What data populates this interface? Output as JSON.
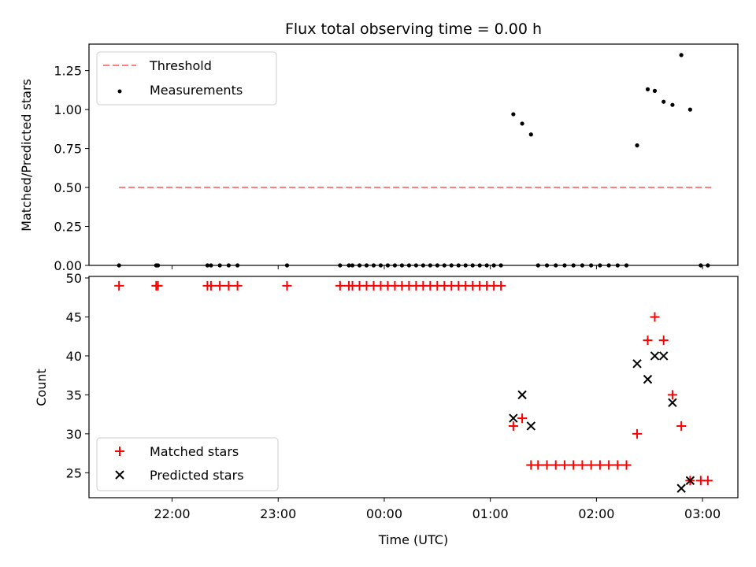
{
  "chart_data": [
    {
      "type": "scatter",
      "title": "Flux total observing time = 0.00 h",
      "xlabel": "",
      "ylabel": "Matched/Predicted stars",
      "xlim": [
        "21:13",
        "03:20"
      ],
      "ylim": [
        0,
        1.42
      ],
      "yticks": [
        "0.00",
        "0.25",
        "0.50",
        "0.75",
        "1.00",
        "1.25"
      ],
      "ytick_values": [
        0,
        0.25,
        0.5,
        0.75,
        1.0,
        1.25
      ],
      "legend": {
        "position": "upper-left",
        "entries": [
          "Threshold",
          "Measurements"
        ]
      },
      "grid": false,
      "series": [
        {
          "name": "Threshold",
          "style": "dashed-line",
          "color": "#ff7f7f",
          "x": [
            "21:30",
            "03:05"
          ],
          "y": [
            0.5,
            0.5
          ]
        },
        {
          "name": "Measurements",
          "style": "dot",
          "color": "#000000",
          "points": [
            [
              "21:30",
              0
            ],
            [
              "21:51",
              0
            ],
            [
              "21:52",
              0
            ],
            [
              "22:20",
              0
            ],
            [
              "22:22",
              0
            ],
            [
              "22:27",
              0
            ],
            [
              "22:32",
              0
            ],
            [
              "22:37",
              0
            ],
            [
              "23:05",
              0
            ],
            [
              "23:35",
              0
            ],
            [
              "23:40",
              0
            ],
            [
              "23:42",
              0
            ],
            [
              "23:46",
              0
            ],
            [
              "23:50",
              0
            ],
            [
              "23:54",
              0
            ],
            [
              "23:58",
              0
            ],
            [
              "00:02",
              0
            ],
            [
              "00:06",
              0
            ],
            [
              "00:10",
              0
            ],
            [
              "00:14",
              0
            ],
            [
              "00:18",
              0
            ],
            [
              "00:22",
              0
            ],
            [
              "00:26",
              0
            ],
            [
              "00:30",
              0
            ],
            [
              "00:34",
              0
            ],
            [
              "00:38",
              0
            ],
            [
              "00:42",
              0
            ],
            [
              "00:46",
              0
            ],
            [
              "00:50",
              0
            ],
            [
              "00:54",
              0
            ],
            [
              "00:58",
              0
            ],
            [
              "01:02",
              0
            ],
            [
              "01:06",
              0
            ],
            [
              "01:13",
              0.97
            ],
            [
              "01:18",
              0.91
            ],
            [
              "01:23",
              0.84
            ],
            [
              "01:27",
              0
            ],
            [
              "01:32",
              0
            ],
            [
              "01:37",
              0
            ],
            [
              "01:42",
              0
            ],
            [
              "01:47",
              0
            ],
            [
              "01:52",
              0
            ],
            [
              "01:57",
              0
            ],
            [
              "02:02",
              0
            ],
            [
              "02:07",
              0
            ],
            [
              "02:12",
              0
            ],
            [
              "02:17",
              0
            ],
            [
              "02:23",
              0.77
            ],
            [
              "02:29",
              1.13
            ],
            [
              "02:33",
              1.12
            ],
            [
              "02:38",
              1.05
            ],
            [
              "02:43",
              1.03
            ],
            [
              "02:48",
              1.35
            ],
            [
              "02:53",
              1.0
            ],
            [
              "02:59",
              0
            ],
            [
              "03:03",
              0
            ]
          ]
        }
      ]
    },
    {
      "type": "scatter",
      "title": "",
      "xlabel": "Time (UTC)",
      "ylabel": "Count",
      "xlim": [
        "21:13",
        "03:20"
      ],
      "ylim": [
        21.8,
        50.2
      ],
      "xticks": [
        "22:00",
        "23:00",
        "00:00",
        "01:00",
        "02:00",
        "03:00"
      ],
      "yticks": [
        "25",
        "30",
        "35",
        "40",
        "45",
        "50"
      ],
      "ytick_values": [
        25,
        30,
        35,
        40,
        45,
        50
      ],
      "legend": {
        "position": "lower-left",
        "entries": [
          "Matched stars",
          "Predicted stars"
        ]
      },
      "grid": false,
      "series": [
        {
          "name": "Matched stars",
          "marker": "plus",
          "color": "#ff0000",
          "points": [
            [
              "21:30",
              49
            ],
            [
              "21:51",
              49
            ],
            [
              "21:52",
              49
            ],
            [
              "22:20",
              49
            ],
            [
              "22:22",
              49
            ],
            [
              "22:27",
              49
            ],
            [
              "22:32",
              49
            ],
            [
              "22:37",
              49
            ],
            [
              "23:05",
              49
            ],
            [
              "23:35",
              49
            ],
            [
              "23:40",
              49
            ],
            [
              "23:42",
              49
            ],
            [
              "23:46",
              49
            ],
            [
              "23:50",
              49
            ],
            [
              "23:54",
              49
            ],
            [
              "23:58",
              49
            ],
            [
              "00:02",
              49
            ],
            [
              "00:06",
              49
            ],
            [
              "00:10",
              49
            ],
            [
              "00:14",
              49
            ],
            [
              "00:18",
              49
            ],
            [
              "00:22",
              49
            ],
            [
              "00:26",
              49
            ],
            [
              "00:30",
              49
            ],
            [
              "00:34",
              49
            ],
            [
              "00:38",
              49
            ],
            [
              "00:42",
              49
            ],
            [
              "00:46",
              49
            ],
            [
              "00:50",
              49
            ],
            [
              "00:54",
              49
            ],
            [
              "00:58",
              49
            ],
            [
              "01:02",
              49
            ],
            [
              "01:06",
              49
            ],
            [
              "01:13",
              31
            ],
            [
              "01:18",
              32
            ],
            [
              "01:23",
              26
            ],
            [
              "01:27",
              26
            ],
            [
              "01:32",
              26
            ],
            [
              "01:37",
              26
            ],
            [
              "01:42",
              26
            ],
            [
              "01:47",
              26
            ],
            [
              "01:52",
              26
            ],
            [
              "01:57",
              26
            ],
            [
              "02:02",
              26
            ],
            [
              "02:07",
              26
            ],
            [
              "02:12",
              26
            ],
            [
              "02:17",
              26
            ],
            [
              "02:23",
              30
            ],
            [
              "02:29",
              42
            ],
            [
              "02:33",
              45
            ],
            [
              "02:38",
              42
            ],
            [
              "02:43",
              35
            ],
            [
              "02:48",
              31
            ],
            [
              "02:53",
              24
            ],
            [
              "02:59",
              24
            ],
            [
              "03:03",
              24
            ]
          ]
        },
        {
          "name": "Predicted stars",
          "marker": "x",
          "color": "#000000",
          "points": [
            [
              "01:13",
              32
            ],
            [
              "01:18",
              35
            ],
            [
              "01:23",
              31
            ],
            [
              "02:23",
              39
            ],
            [
              "02:29",
              37
            ],
            [
              "02:33",
              40
            ],
            [
              "02:38",
              40
            ],
            [
              "02:43",
              34
            ],
            [
              "02:48",
              23
            ],
            [
              "02:53",
              24
            ]
          ]
        }
      ]
    }
  ]
}
